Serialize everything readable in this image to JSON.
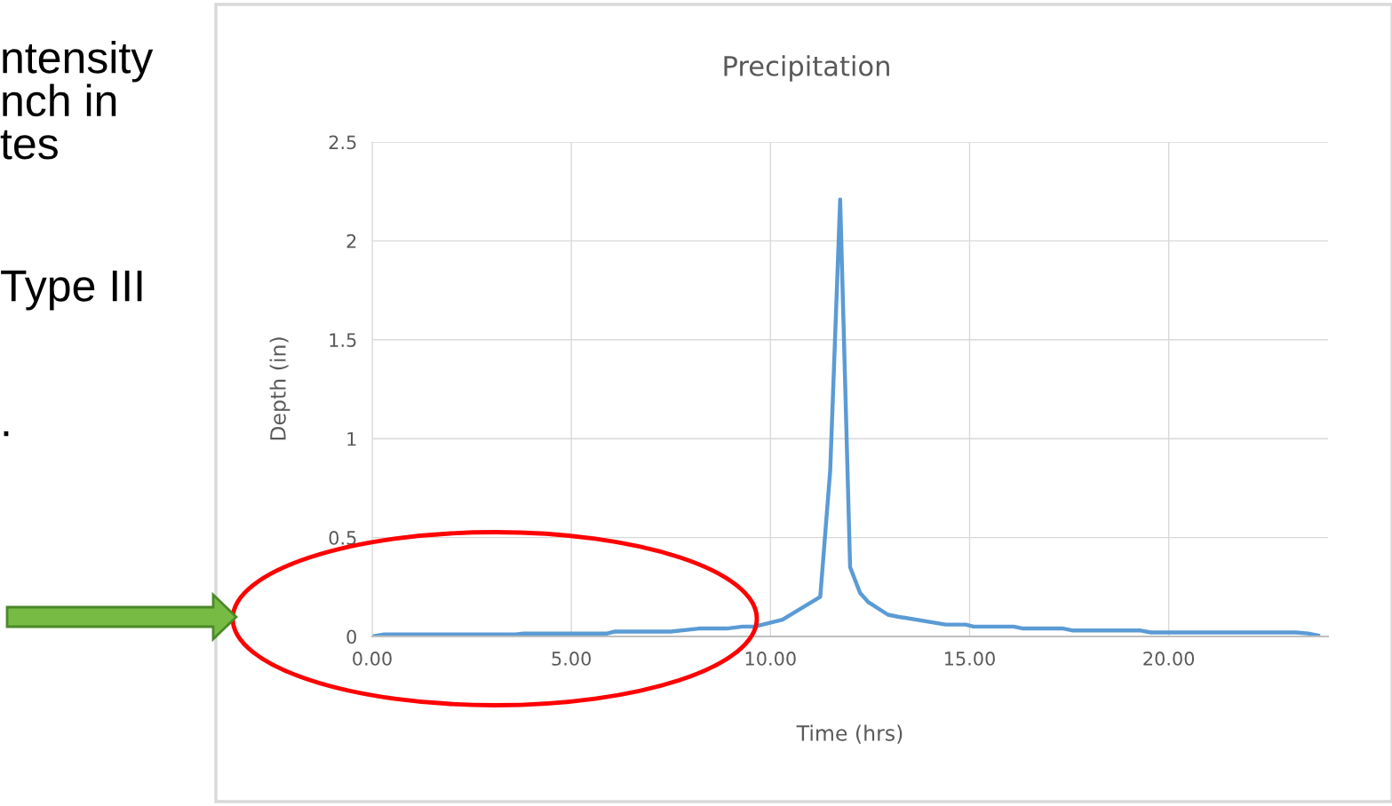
{
  "chart_data": {
    "type": "line",
    "title": "Precipitation",
    "xlabel": "Time (hrs)",
    "ylabel": "Depth (in)",
    "x": [
      0,
      0.3,
      3.6,
      3.8,
      5.9,
      6.1,
      7.5,
      8.2,
      8.9,
      9.3,
      9.6,
      10.3,
      11.25,
      11.5,
      11.75,
      12.0,
      12.25,
      12.45,
      12.95,
      13.2,
      14.4,
      14.9,
      15.1,
      16.1,
      16.35,
      17.35,
      17.6,
      19.3,
      19.55,
      23.2,
      23.5,
      23.75
    ],
    "series": [
      {
        "color": "#5b9bd5",
        "values": [
          0,
          0.01,
          0.01,
          0.015,
          0.015,
          0.025,
          0.025,
          0.04,
          0.04,
          0.05,
          0.05,
          0.085,
          0.2,
          0.84,
          2.21,
          0.35,
          0.22,
          0.175,
          0.11,
          0.1,
          0.06,
          0.06,
          0.05,
          0.05,
          0.04,
          0.04,
          0.03,
          0.03,
          0.02,
          0.02,
          0.015,
          0.005
        ]
      }
    ],
    "xlim": [
      0,
      24
    ],
    "ylim": [
      0,
      2.5
    ],
    "xticks": [
      {
        "value": 0,
        "label": "0.00"
      },
      {
        "value": 5,
        "label": "5.00"
      },
      {
        "value": 10,
        "label": "10.00"
      },
      {
        "value": 15,
        "label": "15.00"
      },
      {
        "value": 20,
        "label": "20.00"
      }
    ],
    "yticks": [
      0,
      0.5,
      1,
      1.5,
      2,
      2.5
    ],
    "grid": true,
    "marker": "none",
    "line_style": "solid",
    "annotations": [
      "ntensity\nnch in\ntes",
      "Type III",
      "."
    ]
  }
}
